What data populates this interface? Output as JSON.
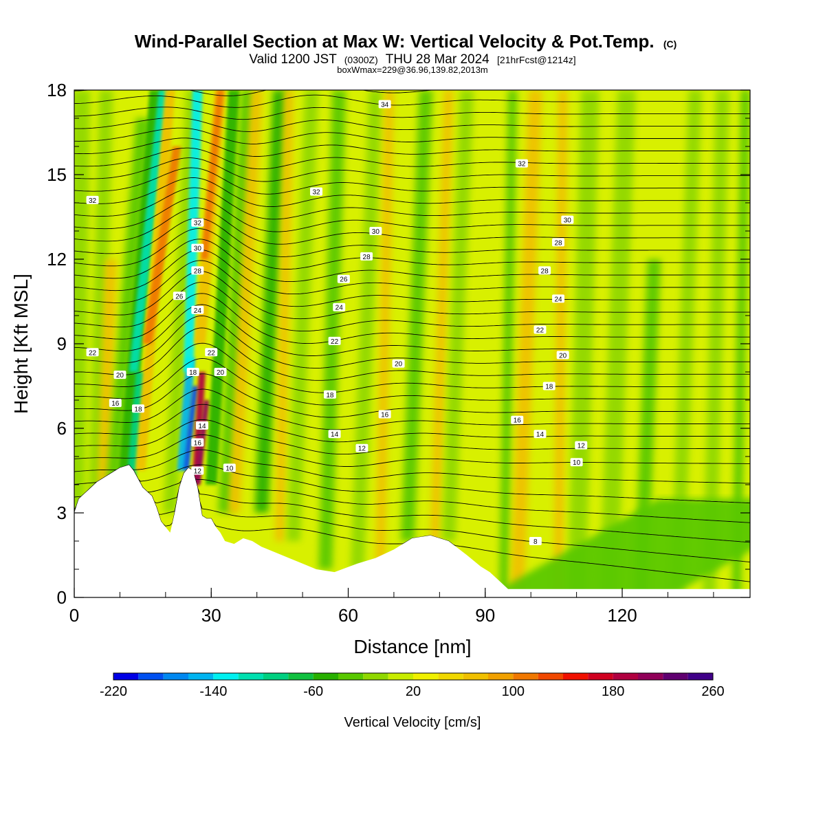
{
  "header": {
    "title": "Wind-Parallel Section at Max W: Vertical Velocity & Pot.Temp.",
    "copyright": "(C)",
    "valid_prefix": "Valid 1200 JST",
    "valid_utc": "(0300Z)",
    "valid_date": "THU 28 Mar 2024",
    "forecast_info": "[21hrFcst@1214z]",
    "boxinfo": "boxWmax=229@36.96,139.82,2013m"
  },
  "colors": {
    "terrain": "#ffffff",
    "background_field": "#d8f000",
    "isentrope": "#000000"
  },
  "chart_data": {
    "type": "heatmap",
    "xlabel": "Distance [nm]",
    "ylabel": "Height [Kft MSL]",
    "xlim": [
      0,
      148
    ],
    "ylim": [
      0,
      18
    ],
    "x_ticks": [
      "0",
      "30",
      "60",
      "90",
      "120"
    ],
    "y_ticks": [
      "0",
      "3",
      "6",
      "9",
      "12",
      "15",
      "18"
    ],
    "x_tick_values": [
      0,
      30,
      60,
      90,
      120
    ],
    "y_tick_values": [
      0,
      3,
      6,
      9,
      12,
      15,
      18
    ],
    "grid": false,
    "colorbar": {
      "label": "Vertical Velocity [cm/s]",
      "min": -220,
      "max": 260,
      "step": 20,
      "tick_labels": [
        "-220",
        "-140",
        "-60",
        "20",
        "100",
        "180",
        "260"
      ],
      "tick_values": [
        -220,
        -140,
        -60,
        20,
        100,
        180,
        260
      ],
      "colors": [
        "#0000e6",
        "#0050f0",
        "#0088f0",
        "#00b4f0",
        "#00f0f0",
        "#00e0b0",
        "#00d080",
        "#10c040",
        "#28b000",
        "#58c800",
        "#90d800",
        "#c8ec00",
        "#f0f000",
        "#f0d800",
        "#f0c000",
        "#f0a000",
        "#f07800",
        "#f04800",
        "#f01000",
        "#d00020",
        "#b00040",
        "#900058",
        "#600070",
        "#400088"
      ]
    },
    "terrain_profile": {
      "x": [
        0,
        1,
        3,
        5,
        8,
        10,
        12,
        13,
        15,
        17,
        18,
        19,
        20,
        21,
        22,
        23,
        24,
        25,
        26,
        27,
        28,
        29,
        30,
        31,
        32,
        33,
        35,
        37,
        39,
        41,
        44,
        47,
        50,
        53,
        57,
        62,
        66,
        70,
        74,
        78,
        82,
        86,
        89,
        91,
        93,
        95,
        100,
        110,
        120,
        130,
        148
      ],
      "y": [
        3.0,
        3.5,
        3.8,
        4.1,
        4.4,
        4.6,
        4.7,
        4.5,
        3.9,
        3.6,
        3.2,
        2.7,
        2.5,
        2.3,
        3.0,
        3.9,
        4.4,
        4.6,
        4.5,
        3.9,
        2.9,
        2.8,
        2.8,
        2.5,
        2.3,
        2.0,
        1.9,
        2.1,
        2.0,
        1.8,
        1.6,
        1.4,
        1.2,
        1.0,
        0.9,
        1.2,
        1.4,
        1.7,
        2.1,
        2.2,
        2.0,
        1.5,
        1.1,
        0.9,
        0.6,
        0.3,
        0.3,
        0.3,
        0.3,
        0.3,
        0.3
      ]
    },
    "isentrope_labels": [
      {
        "text": "34",
        "x": 68,
        "y": 17.5
      },
      {
        "text": "32",
        "x": 98,
        "y": 15.4
      },
      {
        "text": "32",
        "x": 4,
        "y": 14.1
      },
      {
        "text": "32",
        "x": 53,
        "y": 14.4
      },
      {
        "text": "32",
        "x": 27,
        "y": 13.3
      },
      {
        "text": "30",
        "x": 66,
        "y": 13.0
      },
      {
        "text": "30",
        "x": 108,
        "y": 13.4
      },
      {
        "text": "30",
        "x": 27,
        "y": 12.4
      },
      {
        "text": "28",
        "x": 64,
        "y": 12.1
      },
      {
        "text": "28",
        "x": 106,
        "y": 12.6
      },
      {
        "text": "28",
        "x": 27,
        "y": 11.6
      },
      {
        "text": "28",
        "x": 103,
        "y": 11.6
      },
      {
        "text": "26",
        "x": 59,
        "y": 11.3
      },
      {
        "text": "26",
        "x": 23,
        "y": 10.7
      },
      {
        "text": "24",
        "x": 58,
        "y": 10.3
      },
      {
        "text": "24",
        "x": 106,
        "y": 10.6
      },
      {
        "text": "24",
        "x": 27,
        "y": 10.2
      },
      {
        "text": "22",
        "x": 57,
        "y": 9.1
      },
      {
        "text": "22",
        "x": 102,
        "y": 9.5
      },
      {
        "text": "22",
        "x": 4,
        "y": 8.7
      },
      {
        "text": "22",
        "x": 30,
        "y": 8.7
      },
      {
        "text": "20",
        "x": 71,
        "y": 8.3
      },
      {
        "text": "20",
        "x": 107,
        "y": 8.6
      },
      {
        "text": "20",
        "x": 10,
        "y": 7.9
      },
      {
        "text": "20",
        "x": 32,
        "y": 8.0
      },
      {
        "text": "18",
        "x": 26,
        "y": 8.0
      },
      {
        "text": "18",
        "x": 56,
        "y": 7.2
      },
      {
        "text": "18",
        "x": 104,
        "y": 7.5
      },
      {
        "text": "16",
        "x": 9,
        "y": 6.9
      },
      {
        "text": "18",
        "x": 14,
        "y": 6.7
      },
      {
        "text": "16",
        "x": 68,
        "y": 6.5
      },
      {
        "text": "16",
        "x": 97,
        "y": 6.3
      },
      {
        "text": "14",
        "x": 28,
        "y": 6.1
      },
      {
        "text": "14",
        "x": 57,
        "y": 5.8
      },
      {
        "text": "14",
        "x": 102,
        "y": 5.8
      },
      {
        "text": "12",
        "x": 111,
        "y": 5.4
      },
      {
        "text": "16",
        "x": 27,
        "y": 5.5
      },
      {
        "text": "12",
        "x": 63,
        "y": 5.3
      },
      {
        "text": "10",
        "x": 110,
        "y": 4.8
      },
      {
        "text": "12",
        "x": 27,
        "y": 4.5
      },
      {
        "text": "10",
        "x": 34,
        "y": 4.6
      },
      {
        "text": "8",
        "x": 101,
        "y": 2.0
      }
    ]
  }
}
